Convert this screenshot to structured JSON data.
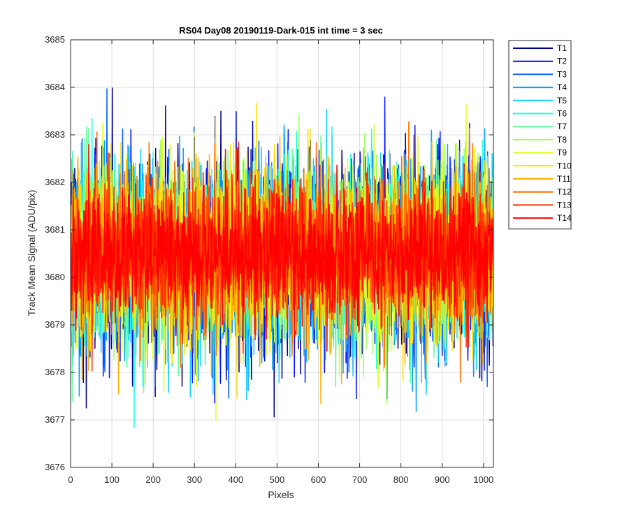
{
  "chart_data": {
    "type": "line",
    "title": "RS04 Day08 20190119-Dark-015 int time = 3 sec",
    "xlabel": "Pixels",
    "ylabel": "Track Mean Signal (ADU/pix)",
    "xlim": [
      0,
      1024
    ],
    "ylim": [
      3676,
      3685
    ],
    "xticks": [
      0,
      100,
      200,
      300,
      400,
      500,
      600,
      700,
      800,
      900,
      1000
    ],
    "yticks": [
      3676,
      3677,
      3678,
      3679,
      3680,
      3681,
      3682,
      3683,
      3684,
      3685
    ],
    "grid": true,
    "legend_position": "outside-top-right",
    "x_range_points": [
      1,
      1024
    ],
    "noise": {
      "mean": 3680.5,
      "approx_min": 3676.8,
      "approx_max": 3684.0
    },
    "series": [
      {
        "name": "T1",
        "color": "#00008f",
        "spread": 1.05
      },
      {
        "name": "T2",
        "color": "#0010ff",
        "spread": 1.0
      },
      {
        "name": "T3",
        "color": "#0060ff",
        "spread": 0.95
      },
      {
        "name": "T4",
        "color": "#00a0ff",
        "spread": 0.95
      },
      {
        "name": "T5",
        "color": "#10d0ff",
        "spread": 0.95
      },
      {
        "name": "T6",
        "color": "#20ffe0",
        "spread": 0.9
      },
      {
        "name": "T7",
        "color": "#60ffa0",
        "spread": 0.9
      },
      {
        "name": "T8",
        "color": "#a0ff60",
        "spread": 0.9
      },
      {
        "name": "T9",
        "color": "#e0ff20",
        "spread": 0.9
      },
      {
        "name": "T10",
        "color": "#ffe000",
        "spread": 0.9
      },
      {
        "name": "T11",
        "color": "#ffb000",
        "spread": 0.85
      },
      {
        "name": "T12",
        "color": "#ff7000",
        "spread": 0.8
      },
      {
        "name": "T13",
        "color": "#ff3000",
        "spread": 0.75
      },
      {
        "name": "T14",
        "color": "#ff0000",
        "spread": 0.7
      }
    ]
  }
}
